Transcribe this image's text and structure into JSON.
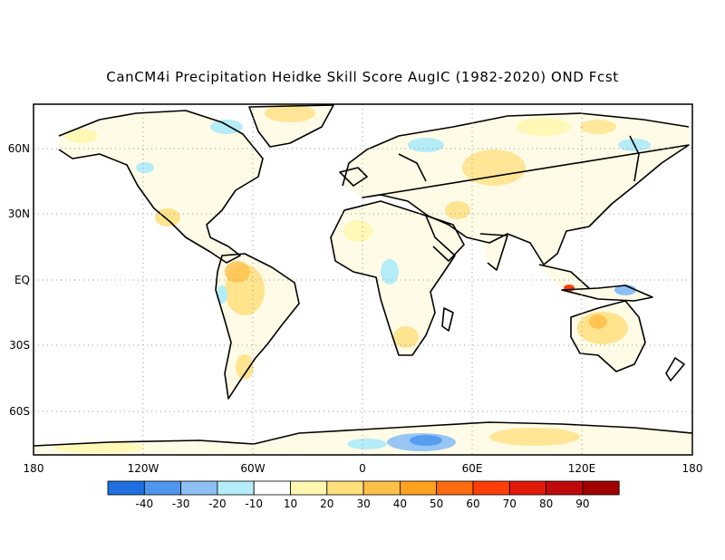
{
  "title": "CanCM4i Precipitation Heidke Skill Score AugIC (1982-2020) OND Fcst",
  "map": {
    "projection": "cylindrical equidistant",
    "lon_range": [
      -180,
      180
    ],
    "lat_range": [
      -80,
      80
    ],
    "coastline_color": "#000000",
    "grid": "dotted",
    "lat_labels": [
      "60N",
      "30N",
      "EQ",
      "30S",
      "60S"
    ],
    "lon_labels": [
      "180",
      "120W",
      "60W",
      "0",
      "60E",
      "120E",
      "180"
    ]
  },
  "colorbar": {
    "tick_labels": [
      "-40",
      "-30",
      "-20",
      "-10",
      "10",
      "20",
      "30",
      "40",
      "50",
      "60",
      "70",
      "80",
      "90"
    ],
    "colors": [
      "#1f6fe0",
      "#4f97ee",
      "#8cc0f5",
      "#b4ecf8",
      "#ffffff",
      "#fff7b0",
      "#ffdf7c",
      "#ffc04a",
      "#ffa21e",
      "#ff6b10",
      "#ff3e0a",
      "#e11a0a",
      "#c00a0a",
      "#a10000"
    ]
  }
}
